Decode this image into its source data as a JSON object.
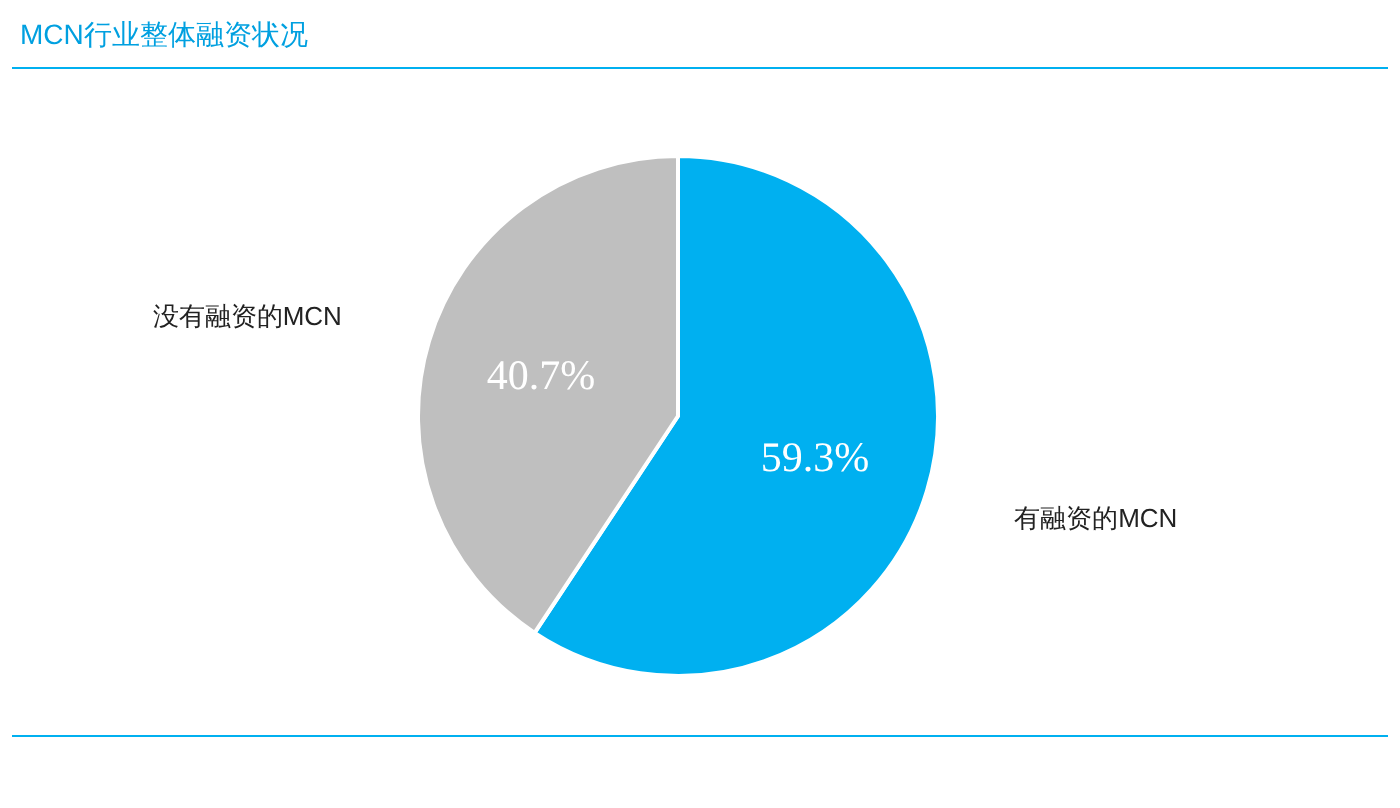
{
  "chart_data": {
    "type": "pie",
    "title": "MCN行业整体融资状况",
    "categories": [
      "有融资的MCN",
      "没有融资的MCN"
    ],
    "values": [
      59.3,
      40.7
    ],
    "colors": [
      "#00b0f0",
      "#bfbfbf"
    ],
    "value_labels": [
      "59.3%",
      "40.7%"
    ]
  }
}
